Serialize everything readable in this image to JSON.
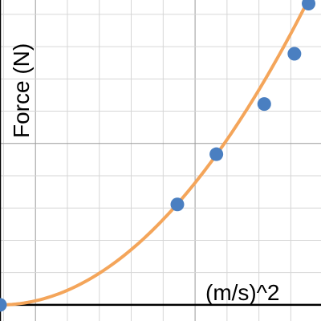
{
  "chart_data": {
    "type": "scatter",
    "ylabel": "Force (N)",
    "xlabel": "(m/s)^2",
    "xlim": [
      -1,
      8.05
    ],
    "ylim": [
      -0.45,
      8.5
    ],
    "grid": true,
    "minor_step": 0.9,
    "major_step": 4.5,
    "points": [
      {
        "x": -1.0,
        "y": 0.0
      },
      {
        "x": 4.0,
        "y": 2.8
      },
      {
        "x": 5.1,
        "y": 4.2
      },
      {
        "x": 6.45,
        "y": 5.6
      },
      {
        "x": 7.3,
        "y": 7.0
      },
      {
        "x": 7.7,
        "y": 8.4
      }
    ],
    "fit_curve": {
      "form": "y = a*(x + 1)^2",
      "a": 0.1125,
      "x_start": -1.0,
      "x_end": 8.0
    },
    "colors": {
      "points": "#4a7fc1",
      "fit": "#f4a55a"
    }
  }
}
